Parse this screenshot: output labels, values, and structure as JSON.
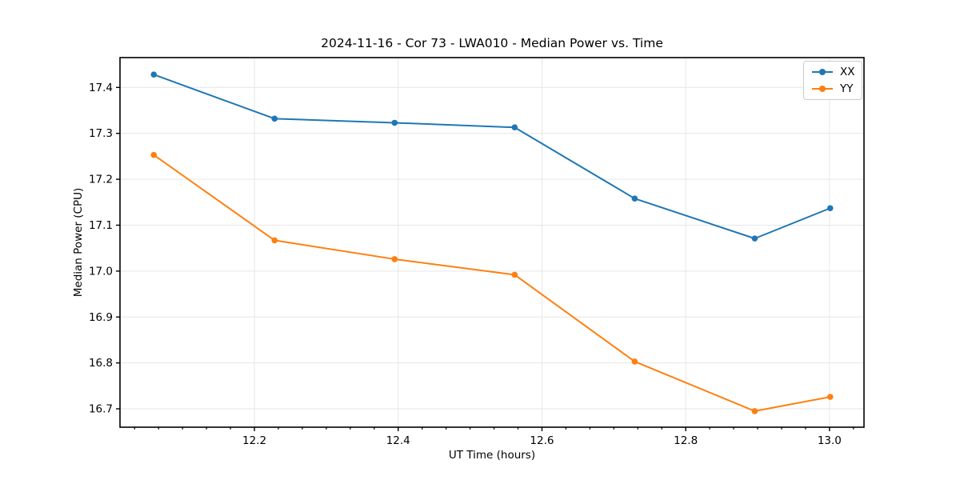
{
  "chart_data": {
    "type": "line",
    "title": "2024-11-16 - Cor 73 - LWA010 - Median Power vs. Time",
    "xlabel": "UT Time (hours)",
    "ylabel": "Median Power (CPU)",
    "x": [
      12.06,
      12.228,
      12.395,
      12.562,
      12.729,
      12.896,
      13.001
    ],
    "series": [
      {
        "name": "XX",
        "color": "#1f77b4",
        "values": [
          17.428,
          17.332,
          17.323,
          17.313,
          17.158,
          17.071,
          17.137
        ]
      },
      {
        "name": "YY",
        "color": "#ff7f0e",
        "values": [
          17.253,
          17.067,
          17.026,
          16.992,
          16.803,
          16.695,
          16.726
        ]
      }
    ],
    "xlim": [
      12.013,
      13.048
    ],
    "ylim": [
      16.66,
      17.465
    ],
    "xticks": [
      12.2,
      12.4,
      12.6,
      12.8,
      13.0
    ],
    "yticks": [
      16.7,
      16.8,
      16.9,
      17.0,
      17.1,
      17.2,
      17.3,
      17.4
    ],
    "x_minor_step": 0.0333333,
    "grid": true,
    "grid_color": "#e6e6e6",
    "axis_color": "#000000",
    "legend": {
      "position": "upper right"
    }
  }
}
